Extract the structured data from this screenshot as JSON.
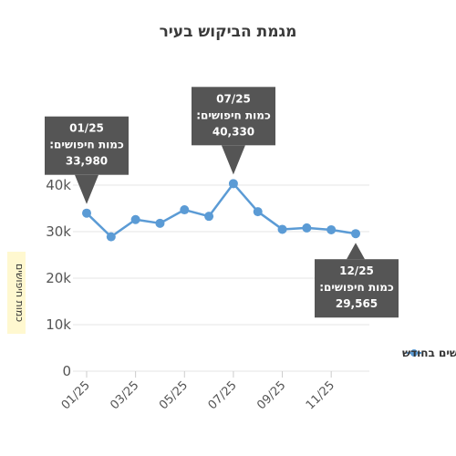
{
  "chart_data": {
    "type": "line",
    "title": "מגמת הביקוש בעיר",
    "xlabel": "",
    "ylabel": "כמות חיפושים",
    "categories": [
      "01/25",
      "02/25",
      "03/25",
      "04/25",
      "05/25",
      "06/25",
      "07/25",
      "08/25",
      "09/25",
      "10/25",
      "11/25",
      "12/25"
    ],
    "x_tick_labels": [
      "01/25",
      "03/25",
      "05/25",
      "07/25",
      "09/25",
      "11/25"
    ],
    "y_tick_labels": [
      "0",
      "10k",
      "20k",
      "30k",
      "40k"
    ],
    "ylim": [
      0,
      43000
    ],
    "grid": true,
    "legend_position": "right",
    "series": [
      {
        "name": "חיפושים בחודש",
        "color": "#5b9bd5",
        "values": [
          33980,
          28900,
          32600,
          31800,
          34700,
          33300,
          40330,
          34300,
          30500,
          30800,
          30400,
          29565
        ]
      }
    ],
    "tooltips": [
      {
        "index": 0,
        "date": "01/25",
        "label": "כמות חיפושים:",
        "value": "33,980"
      },
      {
        "index": 6,
        "date": "07/25",
        "label": "כמות חיפושים:",
        "value": "40,330"
      },
      {
        "index": 11,
        "date": "12/25",
        "label": "כמות חיפושים:",
        "value": "29,565"
      }
    ],
    "colors": {
      "line": "#5b9bd5",
      "tooltip_bg": "#555555",
      "grid": "#e6e6e6",
      "ylabel_bg": "#fff8d0"
    }
  }
}
